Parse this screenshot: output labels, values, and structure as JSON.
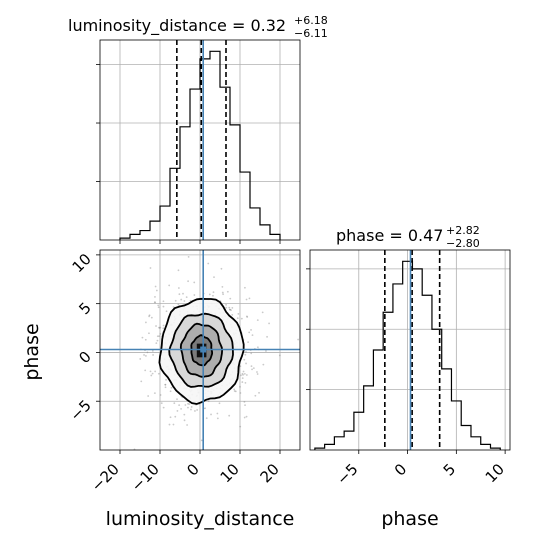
{
  "chart_data": {
    "type": "corner",
    "parameters": [
      "luminosity_distance",
      "phase"
    ],
    "truth_color": "#4682b4",
    "truths": {
      "luminosity_distance": 0.8,
      "phase": 0.3
    },
    "panels": [
      {
        "id": "hist_luminosity_distance",
        "type": "histogram",
        "parameter": "luminosity_distance",
        "title": {
          "main": "luminosity_distance = 0.32",
          "sup": "+6.18",
          "sub": "−6.11"
        },
        "xlim": [
          -25,
          25
        ],
        "grid": true,
        "bin_edges": [
          -20,
          -17.5,
          -15,
          -12.5,
          -10,
          -7.5,
          -5,
          -2.5,
          0,
          2.5,
          5,
          7.5,
          10,
          12.5,
          15,
          17.5,
          20
        ],
        "counts": [
          0.01,
          0.03,
          0.05,
          0.1,
          0.18,
          0.38,
          0.6,
          0.8,
          0.96,
          1.0,
          0.81,
          0.61,
          0.36,
          0.17,
          0.08,
          0.03
        ],
        "quantiles": [
          -5.79,
          0.32,
          6.5
        ],
        "truth": 0.8
      },
      {
        "id": "hist_phase",
        "type": "histogram",
        "parameter": "phase",
        "title": {
          "main": "phase = 0.47",
          "sup": "+2.82",
          "sub": "−2.80"
        },
        "xlim": [
          -10,
          10.5
        ],
        "xticks": [
          -5,
          0,
          5,
          10
        ],
        "xtick_labels": [
          "−5",
          "0",
          "5",
          "10"
        ],
        "xlabel": "phase",
        "grid": true,
        "bin_edges": [
          -9.5,
          -8.5,
          -7.5,
          -6.5,
          -5.5,
          -4.5,
          -3.5,
          -2.5,
          -1.5,
          -0.5,
          0.5,
          1.5,
          2.5,
          3.5,
          4.5,
          5.5,
          6.5,
          7.5,
          8.5,
          9.5
        ],
        "counts": [
          0.01,
          0.03,
          0.07,
          0.1,
          0.2,
          0.34,
          0.53,
          0.73,
          0.88,
          1.0,
          0.96,
          0.82,
          0.64,
          0.43,
          0.26,
          0.13,
          0.07,
          0.03,
          0.01
        ],
        "quantiles": [
          -2.33,
          0.47,
          3.29
        ],
        "truth": 0.3
      },
      {
        "id": "joint",
        "type": "scatter_contour",
        "x_parameter": "luminosity_distance",
        "y_parameter": "phase",
        "xlim": [
          -25,
          25
        ],
        "ylim": [
          -10,
          10.5
        ],
        "xticks": [
          -20,
          -10,
          0,
          10,
          20
        ],
        "xtick_labels": [
          "−20",
          "−10",
          "0",
          "10",
          "20"
        ],
        "yticks": [
          -5,
          0,
          5,
          10
        ],
        "ytick_labels": [
          "−5",
          "0",
          "5",
          "10"
        ],
        "xlabel": "luminosity_distance",
        "ylabel": "phase",
        "center": [
          0.4,
          0.2
        ],
        "contour_levels": [
          {
            "level": 1,
            "x_halfwidth": 10.3,
            "y_halfwidth": 5.3,
            "fill": "#f6f6f6"
          },
          {
            "level": 2,
            "x_halfwidth": 7.7,
            "y_halfwidth": 3.8,
            "fill": "#d4d4d4"
          },
          {
            "level": 3,
            "x_halfwidth": 5.0,
            "y_halfwidth": 2.7,
            "fill": "#a9a9a9"
          },
          {
            "level": 4,
            "x_halfwidth": 2.6,
            "y_halfwidth": 1.5,
            "fill": "#767676"
          }
        ]
      }
    ]
  }
}
